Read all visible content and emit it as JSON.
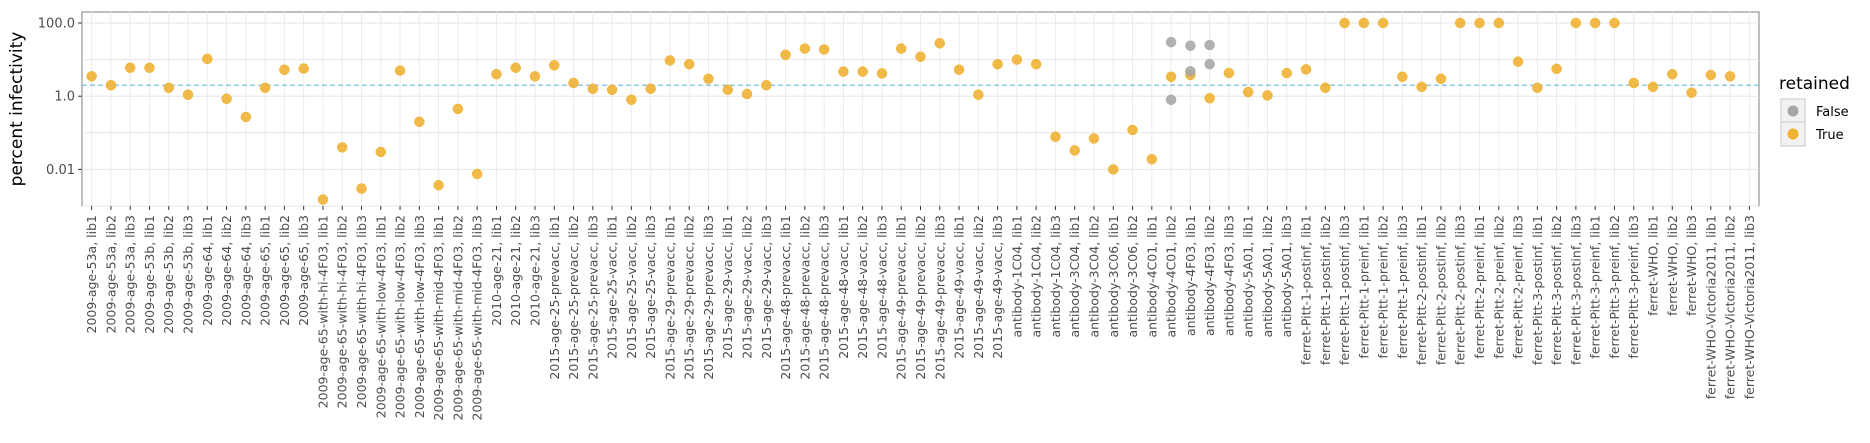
{
  "chart_data": {
    "type": "scatter",
    "ylabel": "percent infectivity",
    "y_scale": "log",
    "ylim": [
      0.001,
      200
    ],
    "y_ticks": [
      {
        "value": 0.01,
        "label": "0.01"
      },
      {
        "value": 1,
        "label": "1.0"
      },
      {
        "value": 100,
        "label": "100.0"
      }
    ],
    "hline": 2,
    "hline_color": "#6fb7d6",
    "legend": {
      "title": "retained",
      "position": "right",
      "entries": [
        {
          "label": "False",
          "color": "#a6a6a6"
        },
        {
          "label": "True",
          "color": "#efb12f"
        }
      ]
    },
    "colors": {
      "True": "#efb12f",
      "False": "#a6a6a6"
    },
    "categories": [
      "2009-age-53a, lib1",
      "2009-age-53a, lib2",
      "2009-age-53a, lib3",
      "2009-age-53b, lib1",
      "2009-age-53b, lib2",
      "2009-age-53b, lib3",
      "2009-age-64, lib1",
      "2009-age-64, lib2",
      "2009-age-64, lib3",
      "2009-age-65, lib1",
      "2009-age-65, lib2",
      "2009-age-65, lib3",
      "2009-age-65-with-hi-4F03, lib1",
      "2009-age-65-with-hi-4F03, lib2",
      "2009-age-65-with-hi-4F03, lib3",
      "2009-age-65-with-low-4F03, lib1",
      "2009-age-65-with-low-4F03, lib2",
      "2009-age-65-with-low-4F03, lib3",
      "2009-age-65-with-mid-4F03, lib1",
      "2009-age-65-with-mid-4F03, lib2",
      "2009-age-65-with-mid-4F03, lib3",
      "2010-age-21, lib1",
      "2010-age-21, lib2",
      "2010-age-21, lib3",
      "2015-age-25-prevacc, lib1",
      "2015-age-25-prevacc, lib2",
      "2015-age-25-prevacc, lib3",
      "2015-age-25-vacc, lib1",
      "2015-age-25-vacc, lib2",
      "2015-age-25-vacc, lib3",
      "2015-age-29-prevacc, lib1",
      "2015-age-29-prevacc, lib2",
      "2015-age-29-prevacc, lib3",
      "2015-age-29-vacc, lib1",
      "2015-age-29-vacc, lib2",
      "2015-age-29-vacc, lib3",
      "2015-age-48-prevacc, lib1",
      "2015-age-48-prevacc, lib2",
      "2015-age-48-prevacc, lib3",
      "2015-age-48-vacc, lib1",
      "2015-age-48-vacc, lib2",
      "2015-age-48-vacc, lib3",
      "2015-age-49-prevacc, lib1",
      "2015-age-49-prevacc, lib2",
      "2015-age-49-prevacc, lib3",
      "2015-age-49-vacc, lib1",
      "2015-age-49-vacc, lib2",
      "2015-age-49-vacc, lib3",
      "antibody-1C04, lib1",
      "antibody-1C04, lib2",
      "antibody-1C04, lib3",
      "antibody-3C04, lib1",
      "antibody-3C04, lib2",
      "antibody-3C06, lib1",
      "antibody-3C06, lib2",
      "antibody-4C01, lib1",
      "antibody-4C01, lib2",
      "antibody-4F03, lib1",
      "antibody-4F03, lib2",
      "antibody-4F03, lib3",
      "antibody-5A01, lib1",
      "antibody-5A01, lib2",
      "antibody-5A01, lib3",
      "ferret-Pitt-1-postinf, lib1",
      "ferret-Pitt-1-postinf, lib2",
      "ferret-Pitt-1-postinf, lib3",
      "ferret-Pitt-1-preinf, lib1",
      "ferret-Pitt-1-preinf, lib2",
      "ferret-Pitt-1-preinf, lib3",
      "ferret-Pitt-2-postinf, lib1",
      "ferret-Pitt-2-postinf, lib2",
      "ferret-Pitt-2-postinf, lib3",
      "ferret-Pitt-2-preinf, lib1",
      "ferret-Pitt-2-preinf, lib2",
      "ferret-Pitt-2-preinf, lib3",
      "ferret-Pitt-3-postinf, lib1",
      "ferret-Pitt-3-postinf, lib2",
      "ferret-Pitt-3-postinf, lib3",
      "ferret-Pitt-3-preinf, lib1",
      "ferret-Pitt-3-preinf, lib2",
      "ferret-Pitt-3-preinf, lib3",
      "ferret-WHO, lib1",
      "ferret-WHO, lib2",
      "ferret-WHO, lib3",
      "ferret-WHO-Victoria2011, lib1",
      "ferret-WHO-Victoria2011, lib2",
      "ferret-WHO-Victoria2011, lib3"
    ],
    "series": [
      {
        "name": "True",
        "points": [
          [
            0,
            3.5
          ],
          [
            1,
            2.0
          ],
          [
            2,
            6.0
          ],
          [
            3,
            6.0
          ],
          [
            4,
            1.7
          ],
          [
            5,
            1.1
          ],
          [
            6,
            10.5
          ],
          [
            7,
            0.85
          ],
          [
            8,
            0.27
          ],
          [
            9,
            1.7
          ],
          [
            10,
            5.3
          ],
          [
            11,
            5.7
          ],
          [
            12,
            0.0015
          ],
          [
            13,
            0.04
          ],
          [
            14,
            0.003
          ],
          [
            15,
            0.03
          ],
          [
            16,
            5.0
          ],
          [
            17,
            0.2
          ],
          [
            18,
            0.0037
          ],
          [
            19,
            0.45
          ],
          [
            20,
            0.0075
          ],
          [
            21,
            4.0
          ],
          [
            22,
            6.0
          ],
          [
            23,
            3.5
          ],
          [
            24,
            7.0
          ],
          [
            25,
            2.3
          ],
          [
            26,
            1.6
          ],
          [
            27,
            1.5
          ],
          [
            28,
            0.8
          ],
          [
            29,
            1.6
          ],
          [
            30,
            9.5
          ],
          [
            31,
            7.5
          ],
          [
            32,
            3.0
          ],
          [
            33,
            1.5
          ],
          [
            34,
            1.15
          ],
          [
            35,
            2.0
          ],
          [
            36,
            13.5
          ],
          [
            37,
            20.0
          ],
          [
            38,
            19.0
          ],
          [
            39,
            4.7
          ],
          [
            40,
            4.7
          ],
          [
            41,
            4.2
          ],
          [
            42,
            20.0
          ],
          [
            43,
            12.0
          ],
          [
            44,
            28.0
          ],
          [
            45,
            5.3
          ],
          [
            46,
            1.1
          ],
          [
            47,
            7.5
          ],
          [
            48,
            10.0
          ],
          [
            49,
            7.5
          ],
          [
            50,
            0.078
          ],
          [
            51,
            0.033
          ],
          [
            52,
            0.07
          ],
          [
            53,
            0.01
          ],
          [
            54,
            0.12
          ],
          [
            55,
            0.019
          ],
          [
            56,
            3.4
          ],
          [
            57,
            3.8
          ],
          [
            58,
            0.88
          ],
          [
            59,
            4.3
          ],
          [
            60,
            1.3
          ],
          [
            61,
            1.05
          ],
          [
            62,
            4.3
          ],
          [
            63,
            5.4
          ],
          [
            64,
            1.7
          ],
          [
            65,
            100
          ],
          [
            66,
            100
          ],
          [
            67,
            100
          ],
          [
            68,
            3.4
          ],
          [
            69,
            1.8
          ],
          [
            70,
            3.0
          ],
          [
            71,
            100
          ],
          [
            72,
            100
          ],
          [
            73,
            100
          ],
          [
            74,
            8.8
          ],
          [
            75,
            1.7
          ],
          [
            76,
            5.6
          ],
          [
            77,
            100
          ],
          [
            78,
            100
          ],
          [
            79,
            100
          ],
          [
            80,
            2.3
          ],
          [
            81,
            1.8
          ],
          [
            82,
            4.0
          ],
          [
            83,
            1.25
          ],
          [
            84,
            3.8
          ],
          [
            85,
            3.5
          ]
        ]
      },
      {
        "name": "False",
        "points": [
          [
            56,
            30.0
          ],
          [
            56,
            0.8
          ],
          [
            57,
            24.0
          ],
          [
            57,
            4.8
          ],
          [
            58,
            25.0
          ],
          [
            58,
            7.5
          ]
        ]
      }
    ]
  }
}
